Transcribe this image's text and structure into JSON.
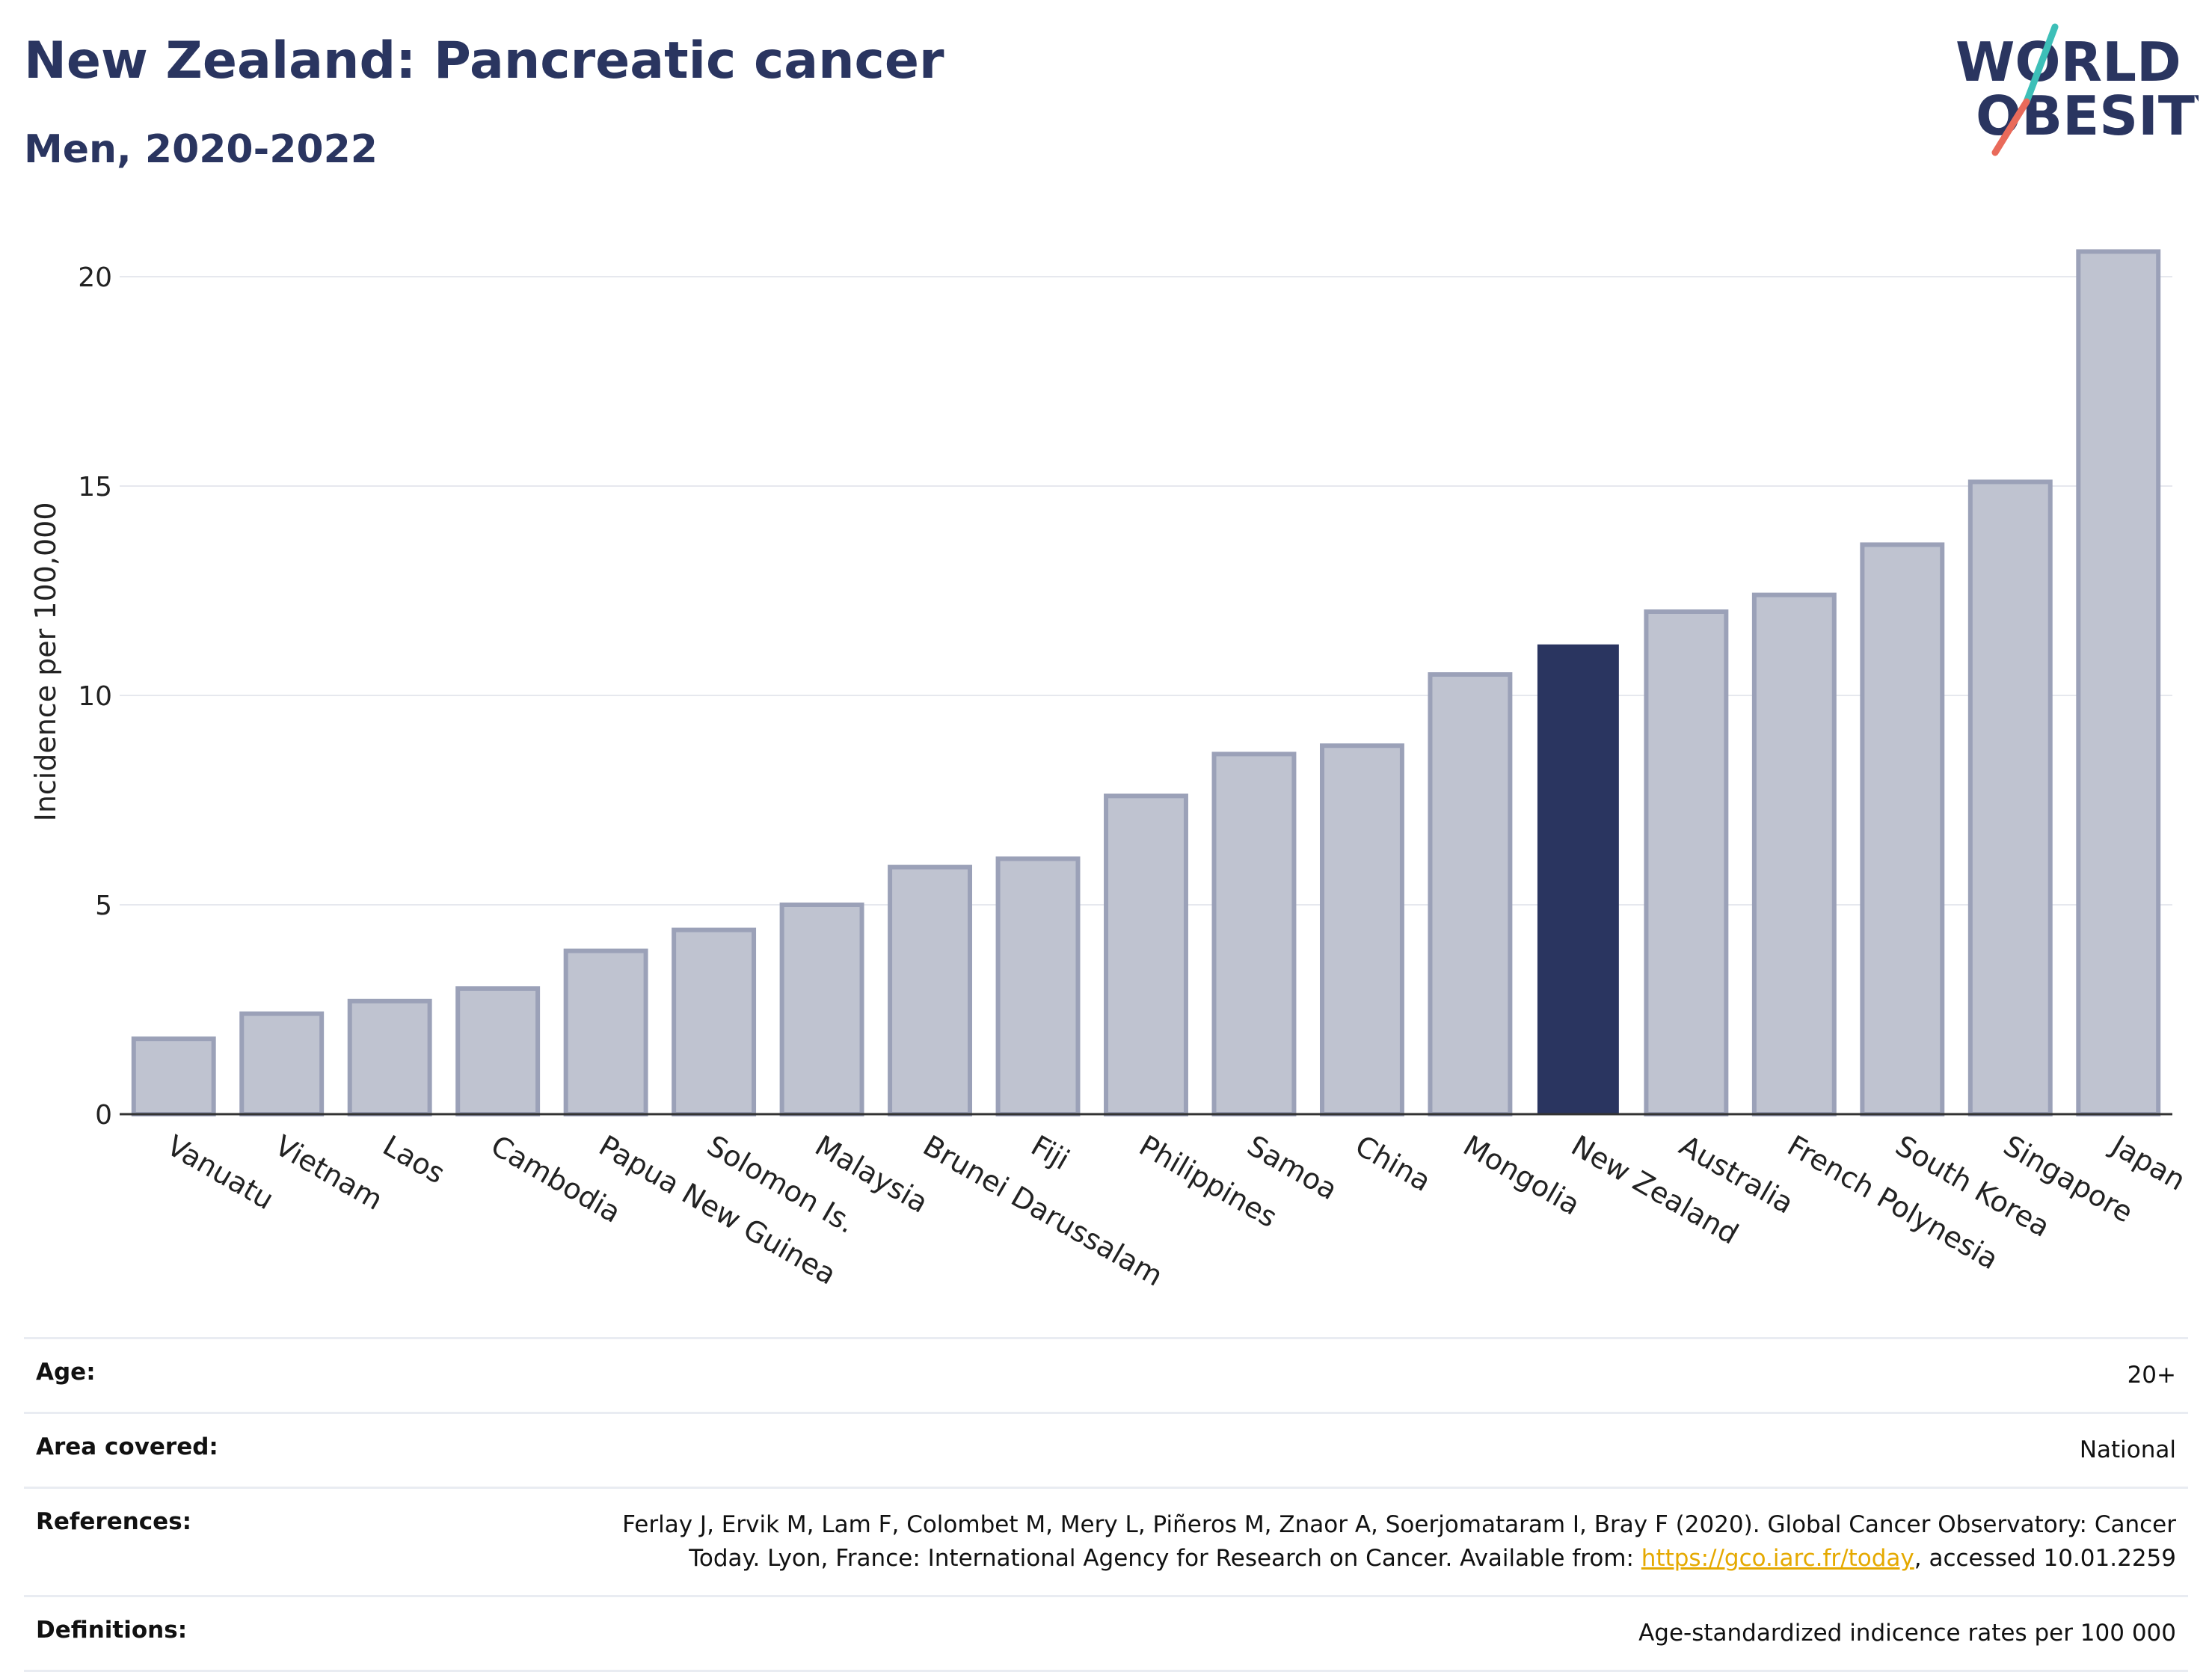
{
  "header": {
    "title": "New Zealand: Pancreatic cancer",
    "subtitle": "Men, 2020-2022"
  },
  "logo": {
    "line1": "WORLD",
    "line2": "OBESITY",
    "text_color": "#2a3560",
    "slash_teal": "#3dbfb8",
    "slash_coral": "#e96a5a"
  },
  "colors": {
    "bar_default": "#bfc3d0",
    "bar_default_border": "#9ba1b8",
    "bar_highlight": "#2a3560",
    "grid": "#e6e8ee",
    "axis": "#333333"
  },
  "chart_data": {
    "type": "bar",
    "ylabel": "Incidence per 100,000",
    "ylim": [
      0,
      21
    ],
    "yticks": [
      "0",
      "5",
      "10",
      "15",
      "20"
    ],
    "ytick_values": [
      0,
      5,
      10,
      15,
      20
    ],
    "grid": true,
    "highlight": "New Zealand",
    "categories": [
      "Vanuatu",
      "Vietnam",
      "Laos",
      "Cambodia",
      "Papua New Guinea",
      "Solomon Is.",
      "Malaysia",
      "Brunei Darussalam",
      "Fiji",
      "Philippines",
      "Samoa",
      "China",
      "Mongolia",
      "New Zealand",
      "Australia",
      "French Polynesia",
      "South Korea",
      "Singapore",
      "Japan"
    ],
    "values": [
      1.8,
      2.4,
      2.7,
      3.0,
      3.9,
      4.4,
      5.0,
      5.9,
      6.1,
      7.6,
      8.6,
      8.8,
      10.5,
      11.2,
      12.0,
      12.4,
      13.6,
      15.1,
      20.6
    ]
  },
  "info": {
    "age_label": "Age:",
    "age_value": "20+",
    "area_label": "Area covered:",
    "area_value": "National",
    "refs_label": "References:",
    "refs_text_1": "Ferlay J, Ervik M, Lam F, Colombet M, Mery L, Piñeros M, Znaor A, Soerjomataram I, Bray F (2020). Global Cancer Observatory: Cancer Today. Lyon, France: International Agency for Research on Cancer. Available from: ",
    "refs_link": "https://gco.iarc.fr/today",
    "refs_text_2": ", accessed 10.01.2259",
    "defs_label": "Definitions:",
    "defs_value": "Age-standardized indicence rates per 100 000"
  }
}
